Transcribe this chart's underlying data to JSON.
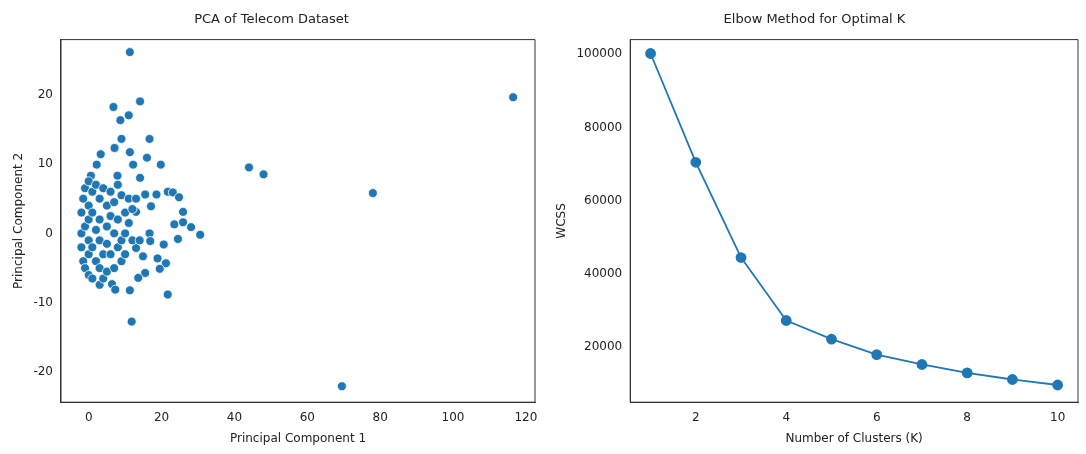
{
  "chart_data": [
    {
      "type": "scatter",
      "title": "PCA of Telecom Dataset",
      "xlabel": "Principal Component 1",
      "ylabel": "Principal Component 2",
      "color": "#1f77b4",
      "marker": "circle",
      "x": [
        116.5,
        44,
        48,
        69.5,
        78,
        11.3,
        14.1,
        6.8,
        11.0,
        8.7,
        9.0,
        16.7,
        3.3,
        7.1,
        11.3,
        16.0,
        19.8,
        2.2,
        12.2,
        7.9,
        14.1,
        0.6,
        21.7,
        23.1,
        24.8,
        18.6,
        15.5,
        17.1,
        25.9,
        13.0,
        23.5,
        25.9,
        28.1,
        30.6,
        16.7,
        16.9,
        24.5,
        20.6,
        13.0,
        18.9,
        21.2,
        19.5,
        14.9,
        15.5,
        13.6,
        21.7,
        11.3,
        11.8,
        3.0,
        6.4,
        7.3,
        -2,
        -2,
        -2,
        -1.5,
        -1.5,
        -1,
        -1,
        -1,
        0,
        0,
        0,
        0,
        0,
        0,
        1,
        1,
        1,
        1,
        2,
        2,
        2,
        3,
        3,
        3,
        3,
        4,
        4,
        4,
        5,
        5,
        5,
        5,
        6,
        6,
        6,
        7,
        7,
        7,
        8,
        8,
        8,
        9,
        9,
        9,
        10,
        10,
        10,
        11,
        11,
        12,
        12,
        13,
        14
      ],
      "values": [
        19.6,
        9.5,
        8.5,
        -22,
        5.8,
        26.1,
        19.0,
        18.2,
        17.0,
        16.3,
        13.6,
        13.6,
        11.4,
        12.3,
        11.7,
        10.9,
        9.9,
        9.9,
        9.9,
        8.3,
        8.0,
        8.3,
        6.0,
        5.9,
        5.2,
        5.6,
        5.6,
        3.9,
        3.1,
        3.1,
        1.3,
        1.6,
        0.9,
        -0.2,
        0,
        -1.1,
        -0.8,
        -1.6,
        -2.1,
        -3.6,
        -4.3,
        -5.1,
        -3.3,
        -5.7,
        -6.4,
        -8.8,
        -8.2,
        -12.7,
        -7.4,
        -7.3,
        -8.1,
        3,
        0,
        -2,
        5,
        -4,
        6.5,
        1,
        -5,
        7.5,
        4,
        2,
        -1,
        -3,
        -6,
        6,
        3,
        -2,
        -6.5,
        7,
        0.5,
        -4,
        5,
        2,
        -1,
        -5,
        6.5,
        -3,
        -6.5,
        4,
        1,
        -1.5,
        -5.5,
        6,
        2.5,
        -3,
        4.5,
        0,
        -5,
        7,
        2,
        -2,
        5.5,
        -1,
        -4,
        3,
        0,
        -3,
        5,
        1.5,
        -1,
        3.5,
        5,
        -1
      ],
      "xlim": [
        -7.6,
        122.5
      ],
      "ylim": [
        -24.3,
        27.9
      ],
      "xticks": [
        0,
        20,
        40,
        60,
        80,
        100,
        120
      ],
      "yticks": [
        -20,
        -10,
        0,
        10,
        20
      ]
    },
    {
      "type": "line",
      "title": "Elbow Method for Optimal K",
      "xlabel": "Number of Clusters (K)",
      "ylabel": "WCSS",
      "color": "#1f77b4",
      "marker": "circle",
      "x": [
        1,
        2,
        3,
        4,
        5,
        6,
        7,
        8,
        9,
        10
      ],
      "values": [
        100200,
        70500,
        44500,
        27300,
        22200,
        18000,
        15300,
        13000,
        11200,
        9700
      ],
      "xlim": [
        0.55,
        10.45
      ],
      "ylim": [
        5000,
        104000
      ],
      "xticks": [
        2,
        4,
        6,
        8,
        10
      ],
      "yticks": [
        20000,
        40000,
        60000,
        80000,
        100000
      ]
    }
  ]
}
